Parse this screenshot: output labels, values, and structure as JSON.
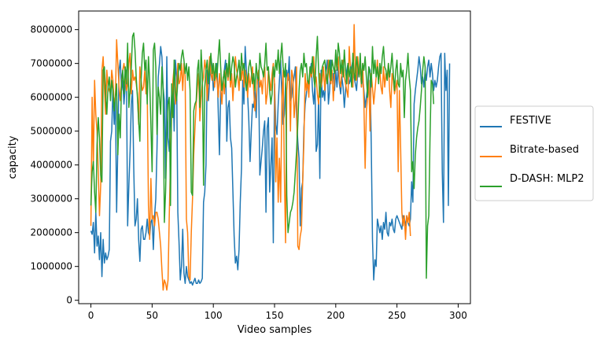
{
  "chart_data": {
    "type": "line",
    "title": "",
    "xlabel": "Video samples",
    "ylabel": "capacity",
    "xlim": [
      -10,
      310
    ],
    "ylim": [
      -100000,
      8550000
    ],
    "xticks": [
      0,
      50,
      100,
      150,
      200,
      250,
      300
    ],
    "xtick_labels": [
      "0",
      "50",
      "100",
      "150",
      "200",
      "250",
      "300"
    ],
    "yticks": [
      0,
      1000000,
      2000000,
      3000000,
      4000000,
      5000000,
      6000000,
      7000000,
      8000000
    ],
    "ytick_labels": [
      "0",
      "1000000",
      "2000000",
      "3000000",
      "4000000",
      "5000000",
      "6000000",
      "7000000",
      "8000000"
    ],
    "grid": false,
    "legend_position": "right, outside plot",
    "x_step": 1,
    "x_start": 0,
    "series": [
      {
        "name": "FESTIVE",
        "color": "#1f77b4",
        "values": [
          2050000,
          1950000,
          2300000,
          1400000,
          2600000,
          1600000,
          1900000,
          1200000,
          2000000,
          700000,
          1800000,
          1100000,
          1400000,
          1200000,
          1300000,
          1500000,
          4700000,
          5000000,
          6300000,
          5200000,
          6000000,
          2600000,
          4600000,
          6800000,
          7100000,
          6200000,
          6500000,
          5800000,
          6300000,
          6800000,
          2200000,
          3400000,
          4400000,
          5800000,
          6200000,
          3900000,
          2200000,
          2400000,
          3000000,
          1800000,
          1150000,
          2100000,
          2200000,
          1800000,
          1800000,
          2000000,
          2400000,
          2000000,
          1900000,
          2300000,
          2400000,
          1500000,
          2500000,
          3000000,
          4500000,
          6600000,
          7000000,
          7500000,
          7200000,
          6300000,
          5900000,
          3600000,
          7200000,
          4800000,
          4400000,
          5500000,
          6100000,
          6400000,
          5000000,
          7100000,
          6600000,
          2600000,
          1700000,
          600000,
          1000000,
          2100000,
          800000,
          500000,
          1000000,
          700000,
          600000,
          500000,
          550000,
          450000,
          550000,
          650000,
          500000,
          500000,
          600000,
          500000,
          550000,
          650000,
          2900000,
          3200000,
          4000000,
          6800000,
          5900000,
          6500000,
          7200000,
          6900000,
          6200000,
          6500000,
          6800000,
          7000000,
          5600000,
          4300000,
          6200000,
          5900000,
          6500000,
          6800000,
          7100000,
          4700000,
          5700000,
          5900000,
          4800000,
          4500000,
          3200000,
          1900000,
          1100000,
          1300000,
          900000,
          1500000,
          2900000,
          3900000,
          6500000,
          5800000,
          7500000,
          6800000,
          6100000,
          5300000,
          4100000,
          5000000,
          5800000,
          5700000,
          6200000,
          5400000,
          6700000,
          6500000,
          3700000,
          4100000,
          4500000,
          5000000,
          5300000,
          2600000,
          5100000,
          5400000,
          3200000,
          4000000,
          4800000,
          1700000,
          6400000,
          5200000,
          4900000,
          5800000,
          6500000,
          7100000,
          6000000,
          5200000,
          5500000,
          6400000,
          6800000,
          6500000,
          7200000,
          5900000,
          6000000,
          6400000,
          6600000,
          6900000,
          5400000,
          4700000,
          4200000,
          2200000,
          3300000,
          3500000,
          5100000,
          5800000,
          6100000,
          6500000,
          6300000,
          6700000,
          7000000,
          6200000,
          5800000,
          6400000,
          4400000,
          4600000,
          6000000,
          3600000,
          6800000,
          6000000,
          6200000,
          5900000,
          6800000,
          7100000,
          5800000,
          6200000,
          7100000,
          6500000,
          6700000,
          6200000,
          6800000,
          6300000,
          6900000,
          6400000,
          6100000,
          6600000,
          6300000,
          5700000,
          6200000,
          6800000,
          7000000,
          6400000,
          6500000,
          6900000,
          7100000,
          6600000,
          6400000,
          6200000,
          6800000,
          6700000,
          7000000,
          6300000,
          6600000,
          6200000,
          5700000,
          6000000,
          6300000,
          6900000,
          6800000,
          4600000,
          1800000,
          600000,
          1200000,
          1000000,
          2400000,
          2200000,
          2000000,
          2200000,
          1800000,
          2300000,
          2100000,
          2600000,
          2000000,
          1900000,
          2300000,
          2200000,
          2400000,
          2100000,
          2000000,
          2400000,
          2500000,
          2400000,
          2300000,
          2200000,
          2100000,
          2500000,
          2400000,
          2200000,
          2500000,
          2300000,
          2200000,
          2400000,
          3500000,
          2900000,
          5800000,
          6200000,
          6500000,
          6800000,
          7200000,
          6900000,
          6400000,
          6600000,
          6300000,
          6800000,
          6500000,
          6900000,
          7100000,
          6600000,
          7000000,
          6700000,
          6200000,
          6500000,
          6300000,
          6500000,
          6900000,
          7200000,
          7300000,
          3800000,
          2300000,
          7300000,
          6200000,
          6800000,
          2800000,
          7000000
        ]
      },
      {
        "name": "Bitrate-based",
        "color": "#ff7f0e",
        "values": [
          2200000,
          6000000,
          3900000,
          6500000,
          5500000,
          5000000,
          3800000,
          2500000,
          3400000,
          6800000,
          7200000,
          6300000,
          5500000,
          6800000,
          6300000,
          6200000,
          6100000,
          6800000,
          6500000,
          5800000,
          6000000,
          7700000,
          7000000,
          6300000,
          5900000,
          6500000,
          6800000,
          7000000,
          6700000,
          6200000,
          6400000,
          7000000,
          7300000,
          6100000,
          6800000,
          6500000,
          6600000,
          6400000,
          6100000,
          5200000,
          6900000,
          6500000,
          6200000,
          6300000,
          6800000,
          6100000,
          6200000,
          2800000,
          1800000,
          3600000,
          2400000,
          2500000,
          2200000,
          2600000,
          2600000,
          2400000,
          2000000,
          1600000,
          900000,
          300000,
          600000,
          500000,
          300000,
          600000,
          2500000,
          4100000,
          5600000,
          6500000,
          6900000,
          5800000,
          6200000,
          7000000,
          6400000,
          6500000,
          7000000,
          6200000,
          7000000,
          6600000,
          2400000,
          2000000,
          700000,
          600000,
          2000000,
          3000000,
          4300000,
          5100000,
          5800000,
          6300000,
          6700000,
          5300000,
          6000000,
          6400000,
          6600000,
          7100000,
          6800000,
          5900000,
          6600000,
          7200000,
          6700000,
          6500000,
          7000000,
          6300000,
          6700000,
          6500000,
          6000000,
          6700000,
          6300000,
          5800000,
          6600000,
          6100000,
          6700000,
          6900000,
          6500000,
          7000000,
          6300000,
          6700000,
          5900000,
          6600000,
          7200000,
          6800000,
          6600000,
          6200000,
          6900000,
          6500000,
          7000000,
          6300000,
          6800000,
          6600000,
          6000000,
          6700000,
          6300000,
          6600000,
          6900000,
          6200000,
          5600000,
          6000000,
          6500000,
          6800000,
          6300000,
          6500000,
          6100000,
          6700000,
          6900000,
          5800000,
          6100000,
          6800000,
          6500000,
          6200000,
          6700000,
          7000000,
          6400000,
          3500000,
          4800000,
          2900000,
          4200000,
          2900000,
          5900000,
          6800000,
          3800000,
          1700000,
          6200000,
          6700000,
          6500000,
          5000000,
          6800000,
          6600000,
          5400000,
          5900000,
          6900000,
          1600000,
          1500000,
          1900000,
          2100000,
          3500000,
          4700000,
          6700000,
          6200000,
          6500000,
          6000000,
          6900000,
          6600000,
          6800000,
          7200000,
          6400000,
          6600000,
          6100000,
          5800000,
          6700000,
          6300000,
          6500000,
          6900000,
          6200000,
          6700000,
          6500000,
          7100000,
          6600000,
          6400000,
          6800000,
          5900000,
          6600000,
          7300000,
          6800000,
          7200000,
          6500000,
          6300000,
          6900000,
          7100000,
          6600000,
          6400000,
          6200000,
          6000000,
          7500000,
          6900000,
          6700000,
          6300000,
          8150000,
          6700000,
          6500000,
          7200000,
          6600000,
          6900000,
          6300000,
          7000000,
          5800000,
          3900000,
          5600000,
          6000000,
          6500000,
          5000000,
          6700000,
          6300000,
          5800000,
          6200000,
          6600000,
          7100000,
          6500000,
          6800000,
          6300000,
          6100000,
          6900000,
          6300000,
          6700000,
          6500000,
          7000000,
          6200000,
          5700000,
          6700000,
          6500000,
          6100000,
          6300000,
          6500000,
          3800000,
          6200000,
          4500000,
          2600000,
          2200000,
          2500000,
          1800000,
          2500000,
          2300000,
          2600000,
          1900000
        ]
      },
      {
        "name": "D-DASH: MLP2",
        "color": "#2ca02c",
        "values": [
          2800000,
          3800000,
          4100000,
          3200000,
          2600000,
          4600000,
          5400000,
          4800000,
          3700000,
          3500000,
          6800000,
          6900000,
          6100000,
          5500000,
          6300000,
          6600000,
          5900000,
          6500000,
          6200000,
          5600000,
          6000000,
          6400000,
          4300000,
          5500000,
          4800000,
          6400000,
          6800000,
          6100000,
          6900000,
          6400000,
          7600000,
          5700000,
          6200000,
          6900000,
          7800000,
          7900000,
          7400000,
          6600000,
          6000000,
          5300000,
          4700000,
          6500000,
          7300000,
          7600000,
          6800000,
          7100000,
          5800000,
          7200000,
          6500000,
          5200000,
          3800000,
          7400000,
          7600000,
          6900000,
          4900000,
          6300000,
          6000000,
          5500000,
          6900000,
          6200000,
          2300000,
          3200000,
          4800000,
          5800000,
          6000000,
          2800000,
          6400000,
          5400000,
          7100000,
          6200000,
          5900000,
          6500000,
          7000000,
          6800000,
          7200000,
          7400000,
          7100000,
          6700000,
          7000000,
          6500000,
          6900000,
          6200000,
          3200000,
          3100000,
          5600000,
          5800000,
          5900000,
          6800000,
          7100000,
          5700000,
          7400000,
          6700000,
          3400000,
          6300000,
          6800000,
          7100000,
          6400000,
          6900000,
          7300000,
          6700000,
          7000000,
          6500000,
          7000000,
          6600000,
          7200000,
          7700000,
          6900000,
          6200000,
          6500000,
          6800000,
          6300000,
          7000000,
          6600000,
          7300000,
          6500000,
          6900000,
          7200000,
          7000000,
          6300000,
          6600000,
          6800000,
          7100000,
          6500000,
          7300000,
          6800000,
          7000000,
          6600000,
          6200000,
          6500000,
          6900000,
          7100000,
          6800000,
          6400000,
          6700000,
          6200000,
          7000000,
          6600000,
          6500000,
          7300000,
          6900000,
          6800000,
          6600000,
          7000000,
          7600000,
          6800000,
          6900000,
          6200000,
          5800000,
          6100000,
          6900000,
          6600000,
          7100000,
          6800000,
          7400000,
          6700000,
          7200000,
          7600000,
          6900000,
          6600000,
          7000000,
          3100000,
          2000000,
          2300000,
          2600000,
          2700000,
          2900000,
          3200000,
          3800000,
          4400000,
          5200000,
          6200000,
          6800000,
          7000000,
          6600000,
          7300000,
          6900000,
          7000000,
          6500000,
          6400000,
          6900000,
          6700000,
          7200000,
          6600000,
          6300000,
          7200000,
          7800000,
          6800000,
          6000000,
          6500000,
          6900000,
          7000000,
          7100000,
          6700000,
          6400000,
          6800000,
          7100000,
          6500000,
          7100000,
          6900000,
          6700000,
          7400000,
          6800000,
          7600000,
          7300000,
          6700000,
          7100000,
          6600000,
          7400000,
          6800000,
          6400000,
          7000000,
          6600000,
          6900000,
          6300000,
          7300000,
          6700000,
          6500000,
          7200000,
          6900000,
          6600000,
          7300000,
          6400000,
          7000000,
          6800000,
          7200000,
          6600000,
          6000000,
          6900000,
          6700000,
          6300000,
          7500000,
          6700000,
          7100000,
          6600000,
          6900000,
          6400000,
          7000000,
          6700000,
          7200000,
          7500000,
          6900000,
          6800000,
          6500000,
          7000000,
          6600000,
          6900000,
          7300000,
          6700000,
          6200000,
          6800000,
          7100000,
          6400000,
          6300000,
          7000000,
          6600000,
          6800000,
          5400000,
          6500000,
          6800000,
          7300000,
          6600000,
          6200000,
          3800000,
          4100000,
          3300000,
          4300000,
          4800000,
          5100000,
          5300000,
          5700000,
          6200000,
          6800000,
          7200000,
          6900000,
          650000,
          2200000,
          2500000,
          4800000,
          6500000,
          6400000,
          5800000
        ]
      }
    ]
  }
}
